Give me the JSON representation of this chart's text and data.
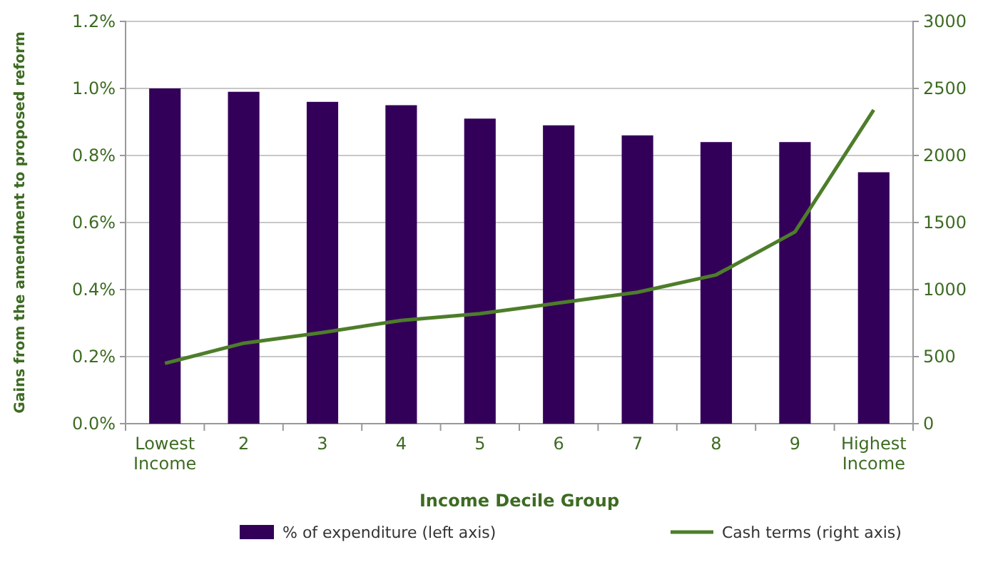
{
  "chart_data": {
    "type": "bar",
    "xlabel": "Income Decile Group",
    "ylabel": "Gains from the amendment to proposed reform",
    "categories": [
      "Lowest Income",
      "2",
      "3",
      "4",
      "5",
      "6",
      "7",
      "8",
      "9",
      "Highest Income"
    ],
    "series": [
      {
        "name": "% of expenditure (left axis)",
        "color": "#330059",
        "values": [
          1.0,
          0.99,
          0.96,
          0.95,
          0.91,
          0.89,
          0.86,
          0.84,
          0.84,
          0.75
        ]
      },
      {
        "name": "Cash terms (right axis)",
        "type": "line",
        "axis": "y2",
        "color": "#4e7d2a",
        "values": [
          450,
          600,
          680,
          770,
          820,
          900,
          980,
          1110,
          1430,
          2340
        ]
      }
    ],
    "ylim": [
      0,
      1.2
    ],
    "yticks": [
      {
        "value": 0,
        "label": "0.0%"
      },
      {
        "value": 0.2,
        "label": "0.2%"
      },
      {
        "value": 0.4,
        "label": "0.4%"
      },
      {
        "value": 0.6,
        "label": "0.6%"
      },
      {
        "value": 0.8,
        "label": "0.8%"
      },
      {
        "value": 1.0,
        "label": "1.0%"
      },
      {
        "value": 1.2,
        "label": "1.2%"
      }
    ],
    "y2lim": [
      0,
      3000
    ],
    "y2ticks": [
      0,
      500,
      1000,
      1500,
      2000,
      2500,
      3000
    ],
    "grid": "y",
    "legend": "bottom",
    "marker": "none",
    "line_style": "solid"
  }
}
